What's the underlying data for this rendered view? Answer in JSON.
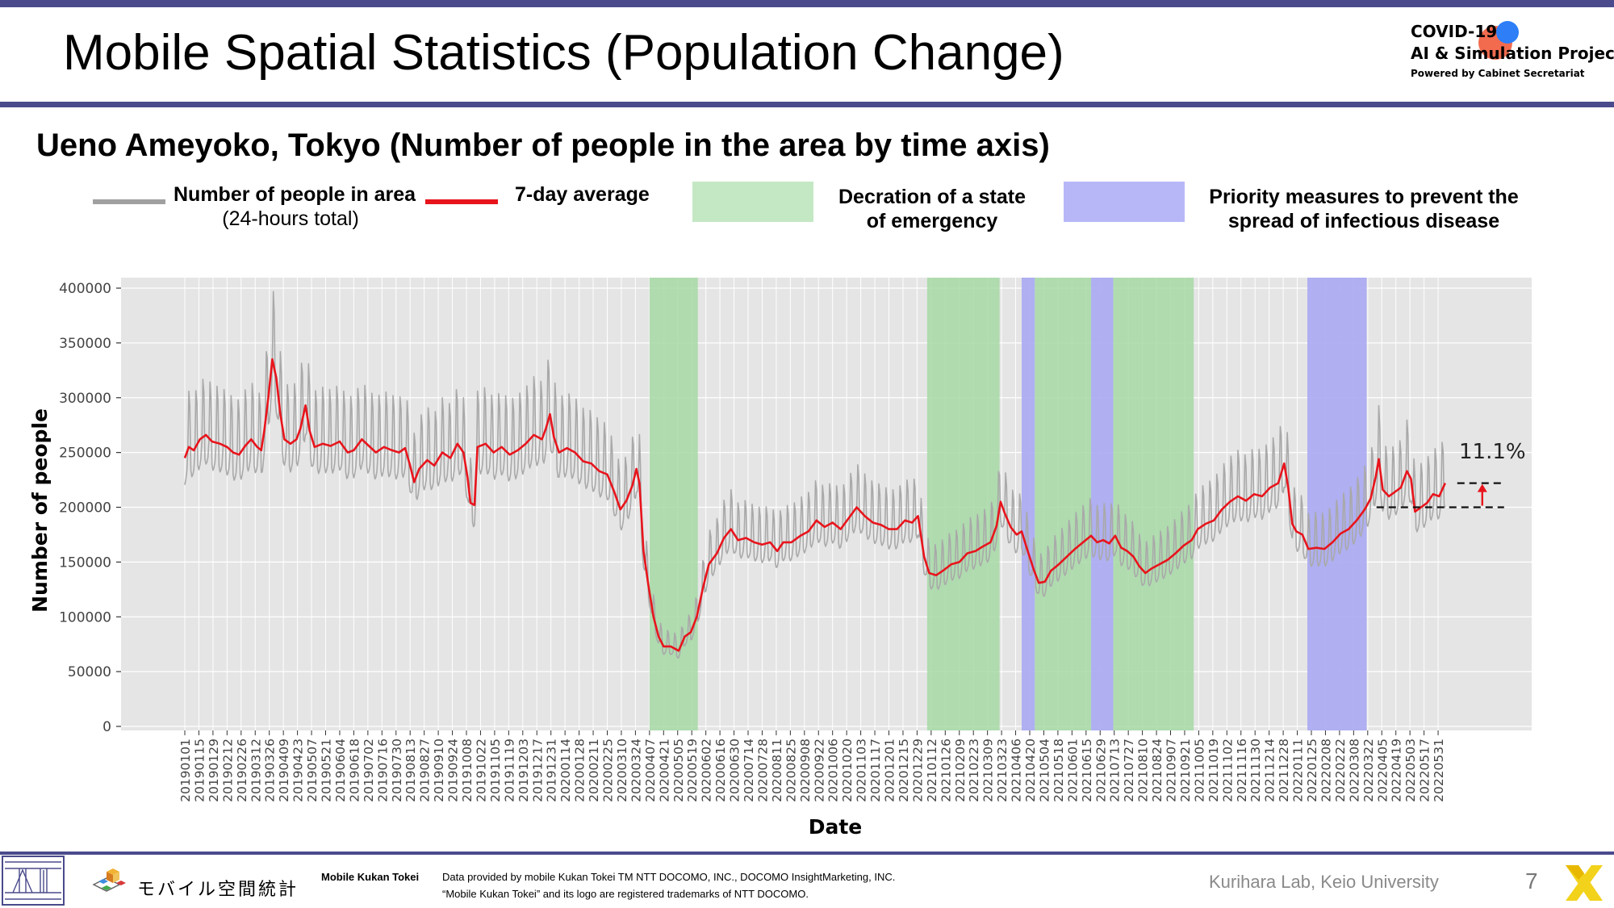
{
  "header": {
    "title": "Mobile Spatial Statistics (Population Change)",
    "logo_line1": "COVID-19",
    "logo_line2": "AI & Simulation Project",
    "logo_line3": "Powered by Cabinet Secretariat"
  },
  "subtitle": "Ueno Ameyoko, Tokyo (Number of people in the area by time axis)",
  "legend": {
    "gray_label": "Number of people in area",
    "gray_sublabel": "(24-hours total)",
    "red_label": "7-day average",
    "green_label_1": "Decration of a state",
    "green_label_2": "of emergency",
    "blue_label_1": "Priority measures to prevent the",
    "blue_label_2": "spread of infectious disease"
  },
  "colors": {
    "daily": "#a9a9a9",
    "average": "#e8141c",
    "emergency": "#a6d9a6",
    "priority": "#a9a9f2",
    "plot_bg": "#e5e5e5",
    "bar": "#4a4a8c"
  },
  "chart_data": {
    "type": "line",
    "xlabel": "Date",
    "ylabel": "Number of people",
    "ylim": [
      0,
      400000
    ],
    "y_ticks": [
      0,
      50000,
      100000,
      150000,
      200000,
      250000,
      300000,
      350000,
      400000
    ],
    "y_tick_labels": [
      "0",
      "50000",
      "100000",
      "150000",
      "200000",
      "250000",
      "300000",
      "350000",
      "400000"
    ],
    "x_tick_labels": [
      "20190101",
      "20190115",
      "20190129",
      "20190212",
      "20190226",
      "20190312",
      "20190326",
      "20190409",
      "20190423",
      "20190507",
      "20190521",
      "20190604",
      "20190618",
      "20190702",
      "20190716",
      "20190730",
      "20190813",
      "20190827",
      "20190910",
      "20190924",
      "20191008",
      "20191022",
      "20191105",
      "20191119",
      "20191203",
      "20191217",
      "20191231",
      "20200114",
      "20200128",
      "20200211",
      "20200225",
      "20200310",
      "20200324",
      "20200407",
      "20200421",
      "20200505",
      "20200519",
      "20200602",
      "20200616",
      "20200630",
      "20200714",
      "20200728",
      "20200811",
      "20200825",
      "20200908",
      "20200922",
      "20201006",
      "20201020",
      "20201103",
      "20201117",
      "20201201",
      "20201215",
      "20201229",
      "20210112",
      "20210126",
      "20210209",
      "20210223",
      "20210309",
      "20210323",
      "20210406",
      "20210420",
      "20210504",
      "20210518",
      "20210601",
      "20210615",
      "20210629",
      "20210713",
      "20210727",
      "20210810",
      "20210824",
      "20210907",
      "20210921",
      "20211005",
      "20211019",
      "20211102",
      "20211116",
      "20211130",
      "20211214",
      "20211228",
      "20220111",
      "20220125",
      "20220208",
      "20220222",
      "20220308",
      "20220322",
      "20220405",
      "20220419",
      "20220503",
      "20220517",
      "20220531"
    ],
    "date_start": "2019-01-01",
    "date_end": "2022-06-07",
    "series": [
      {
        "name": "7-day average",
        "points": [
          [
            "2019-01-01",
            245000
          ],
          [
            "2019-01-05",
            255000
          ],
          [
            "2019-01-10",
            252000
          ],
          [
            "2019-01-16",
            262000
          ],
          [
            "2019-01-22",
            266000
          ],
          [
            "2019-01-28",
            260000
          ],
          [
            "2019-02-05",
            258000
          ],
          [
            "2019-02-12",
            255000
          ],
          [
            "2019-02-18",
            250000
          ],
          [
            "2019-02-24",
            248000
          ],
          [
            "2019-03-02",
            256000
          ],
          [
            "2019-03-08",
            262000
          ],
          [
            "2019-03-14",
            255000
          ],
          [
            "2019-03-18",
            252000
          ],
          [
            "2019-03-21",
            270000
          ],
          [
            "2019-03-25",
            300000
          ],
          [
            "2019-03-29",
            335000
          ],
          [
            "2019-04-02",
            318000
          ],
          [
            "2019-04-06",
            285000
          ],
          [
            "2019-04-10",
            262000
          ],
          [
            "2019-04-16",
            258000
          ],
          [
            "2019-04-22",
            262000
          ],
          [
            "2019-04-26",
            272000
          ],
          [
            "2019-05-01",
            293000
          ],
          [
            "2019-05-05",
            270000
          ],
          [
            "2019-05-10",
            255000
          ],
          [
            "2019-05-18",
            258000
          ],
          [
            "2019-05-26",
            256000
          ],
          [
            "2019-06-04",
            260000
          ],
          [
            "2019-06-12",
            250000
          ],
          [
            "2019-06-18",
            252000
          ],
          [
            "2019-06-26",
            262000
          ],
          [
            "2019-07-03",
            256000
          ],
          [
            "2019-07-10",
            250000
          ],
          [
            "2019-07-18",
            255000
          ],
          [
            "2019-07-26",
            252000
          ],
          [
            "2019-08-02",
            250000
          ],
          [
            "2019-08-08",
            254000
          ],
          [
            "2019-08-13",
            238000
          ],
          [
            "2019-08-17",
            223000
          ],
          [
            "2019-08-22",
            235000
          ],
          [
            "2019-08-30",
            243000
          ],
          [
            "2019-09-06",
            238000
          ],
          [
            "2019-09-14",
            250000
          ],
          [
            "2019-09-22",
            245000
          ],
          [
            "2019-09-29",
            258000
          ],
          [
            "2019-10-05",
            250000
          ],
          [
            "2019-10-09",
            228000
          ],
          [
            "2019-10-12",
            204000
          ],
          [
            "2019-10-16",
            202000
          ],
          [
            "2019-10-19",
            255000
          ],
          [
            "2019-10-27",
            258000
          ],
          [
            "2019-11-04",
            250000
          ],
          [
            "2019-11-12",
            255000
          ],
          [
            "2019-11-20",
            248000
          ],
          [
            "2019-11-28",
            252000
          ],
          [
            "2019-12-06",
            258000
          ],
          [
            "2019-12-14",
            266000
          ],
          [
            "2019-12-22",
            262000
          ],
          [
            "2019-12-26",
            272000
          ],
          [
            "2019-12-30",
            285000
          ],
          [
            "2020-01-03",
            264000
          ],
          [
            "2020-01-08",
            250000
          ],
          [
            "2020-01-16",
            254000
          ],
          [
            "2020-01-24",
            250000
          ],
          [
            "2020-02-01",
            242000
          ],
          [
            "2020-02-09",
            240000
          ],
          [
            "2020-02-17",
            233000
          ],
          [
            "2020-02-25",
            230000
          ],
          [
            "2020-03-03",
            214000
          ],
          [
            "2020-03-09",
            198000
          ],
          [
            "2020-03-15",
            206000
          ],
          [
            "2020-03-21",
            220000
          ],
          [
            "2020-03-25",
            235000
          ],
          [
            "2020-03-28",
            222000
          ],
          [
            "2020-04-01",
            160000
          ],
          [
            "2020-04-06",
            128000
          ],
          [
            "2020-04-11",
            100000
          ],
          [
            "2020-04-16",
            82000
          ],
          [
            "2020-04-21",
            73000
          ],
          [
            "2020-04-28",
            73000
          ],
          [
            "2020-05-06",
            69000
          ],
          [
            "2020-05-12",
            82000
          ],
          [
            "2020-05-18",
            86000
          ],
          [
            "2020-05-24",
            100000
          ],
          [
            "2020-05-30",
            126000
          ],
          [
            "2020-06-05",
            148000
          ],
          [
            "2020-06-13",
            158000
          ],
          [
            "2020-06-20",
            172000
          ],
          [
            "2020-06-27",
            180000
          ],
          [
            "2020-07-04",
            170000
          ],
          [
            "2020-07-12",
            172000
          ],
          [
            "2020-07-20",
            168000
          ],
          [
            "2020-07-28",
            166000
          ],
          [
            "2020-08-05",
            168000
          ],
          [
            "2020-08-12",
            160000
          ],
          [
            "2020-08-18",
            168000
          ],
          [
            "2020-08-26",
            168000
          ],
          [
            "2020-09-04",
            174000
          ],
          [
            "2020-09-12",
            178000
          ],
          [
            "2020-09-20",
            188000
          ],
          [
            "2020-09-28",
            182000
          ],
          [
            "2020-10-06",
            186000
          ],
          [
            "2020-10-14",
            180000
          ],
          [
            "2020-10-22",
            190000
          ],
          [
            "2020-10-30",
            200000
          ],
          [
            "2020-11-07",
            192000
          ],
          [
            "2020-11-15",
            186000
          ],
          [
            "2020-11-23",
            184000
          ],
          [
            "2020-12-01",
            180000
          ],
          [
            "2020-12-09",
            180000
          ],
          [
            "2020-12-17",
            188000
          ],
          [
            "2020-12-24",
            186000
          ],
          [
            "2020-12-30",
            192000
          ],
          [
            "2021-01-05",
            155000
          ],
          [
            "2021-01-10",
            140000
          ],
          [
            "2021-01-17",
            138000
          ],
          [
            "2021-01-25",
            143000
          ],
          [
            "2021-02-01",
            148000
          ],
          [
            "2021-02-09",
            150000
          ],
          [
            "2021-02-17",
            158000
          ],
          [
            "2021-02-25",
            160000
          ],
          [
            "2021-03-04",
            164000
          ],
          [
            "2021-03-12",
            168000
          ],
          [
            "2021-03-18",
            183000
          ],
          [
            "2021-03-22",
            205000
          ],
          [
            "2021-03-26",
            195000
          ],
          [
            "2021-04-01",
            182000
          ],
          [
            "2021-04-07",
            175000
          ],
          [
            "2021-04-12",
            178000
          ],
          [
            "2021-04-18",
            160000
          ],
          [
            "2021-04-24",
            143000
          ],
          [
            "2021-04-29",
            131000
          ],
          [
            "2021-05-05",
            132000
          ],
          [
            "2021-05-11",
            142000
          ],
          [
            "2021-05-19",
            148000
          ],
          [
            "2021-05-27",
            155000
          ],
          [
            "2021-06-04",
            162000
          ],
          [
            "2021-06-12",
            168000
          ],
          [
            "2021-06-20",
            174000
          ],
          [
            "2021-06-26",
            168000
          ],
          [
            "2021-07-02",
            170000
          ],
          [
            "2021-07-08",
            167000
          ],
          [
            "2021-07-14",
            174000
          ],
          [
            "2021-07-20",
            163000
          ],
          [
            "2021-07-26",
            160000
          ],
          [
            "2021-08-01",
            155000
          ],
          [
            "2021-08-07",
            146000
          ],
          [
            "2021-08-13",
            140000
          ],
          [
            "2021-08-19",
            144000
          ],
          [
            "2021-08-27",
            148000
          ],
          [
            "2021-09-04",
            152000
          ],
          [
            "2021-09-12",
            158000
          ],
          [
            "2021-09-20",
            165000
          ],
          [
            "2021-09-28",
            170000
          ],
          [
            "2021-10-04",
            180000
          ],
          [
            "2021-10-12",
            185000
          ],
          [
            "2021-10-20",
            188000
          ],
          [
            "2021-10-28",
            198000
          ],
          [
            "2021-11-05",
            205000
          ],
          [
            "2021-11-13",
            210000
          ],
          [
            "2021-11-21",
            206000
          ],
          [
            "2021-11-29",
            212000
          ],
          [
            "2021-12-07",
            210000
          ],
          [
            "2021-12-15",
            218000
          ],
          [
            "2021-12-23",
            222000
          ],
          [
            "2021-12-29",
            240000
          ],
          [
            "2022-01-02",
            218000
          ],
          [
            "2022-01-06",
            185000
          ],
          [
            "2022-01-10",
            178000
          ],
          [
            "2022-01-16",
            175000
          ],
          [
            "2022-01-22",
            162000
          ],
          [
            "2022-01-30",
            163000
          ],
          [
            "2022-02-07",
            162000
          ],
          [
            "2022-02-15",
            168000
          ],
          [
            "2022-02-23",
            176000
          ],
          [
            "2022-03-03",
            180000
          ],
          [
            "2022-03-11",
            188000
          ],
          [
            "2022-03-19",
            198000
          ],
          [
            "2022-03-25",
            208000
          ],
          [
            "2022-03-30",
            228000
          ],
          [
            "2022-04-02",
            244000
          ],
          [
            "2022-04-06",
            216000
          ],
          [
            "2022-04-12",
            210000
          ],
          [
            "2022-04-18",
            214000
          ],
          [
            "2022-04-24",
            218000
          ],
          [
            "2022-04-30",
            233000
          ],
          [
            "2022-05-04",
            226000
          ],
          [
            "2022-05-08",
            196000
          ],
          [
            "2022-05-14",
            200000
          ],
          [
            "2022-05-20",
            204000
          ],
          [
            "2022-05-26",
            212000
          ],
          [
            "2022-06-01",
            210000
          ],
          [
            "2022-06-07",
            222000
          ]
        ]
      }
    ],
    "emergency_periods": [
      [
        "2020-04-07",
        "2020-05-25"
      ],
      [
        "2021-01-08",
        "2021-03-21"
      ],
      [
        "2021-04-25",
        "2021-06-20"
      ],
      [
        "2021-07-12",
        "2021-09-30"
      ]
    ],
    "priority_periods": [
      [
        "2021-04-12",
        "2021-04-25"
      ],
      [
        "2021-06-20",
        "2021-07-12"
      ],
      [
        "2022-01-21",
        "2022-03-21"
      ]
    ],
    "annotation": {
      "label": "11.1%",
      "low_value": 200000,
      "high_value": 222000
    }
  },
  "footer": {
    "source_title": "Mobile Kukan Tokei",
    "source_line1": "Data provided by mobile Kukan Tokei TM NTT DOCOMO, INC., DOCOMO InsightMarketing, INC.",
    "source_line2": "“Mobile Kukan Tokei” and its logo are registered trademarks of NTT DOCOMO.",
    "logo_text": "モバイル空間統計",
    "lab": "Kurihara Lab, Keio University",
    "page_number": "7"
  }
}
